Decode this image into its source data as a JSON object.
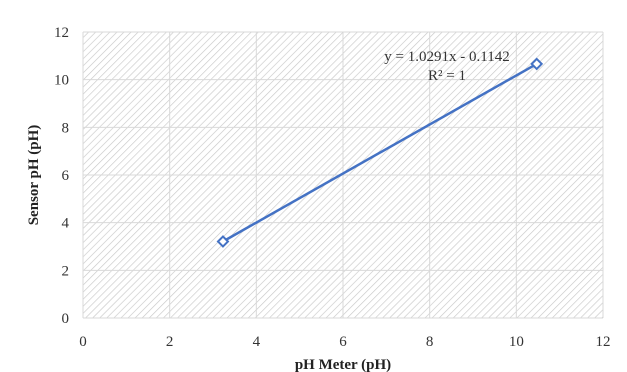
{
  "chart_data": {
    "type": "scatter",
    "title": "",
    "xlabel": "pH Meter (pH)",
    "ylabel": "Sensor pH (pH)",
    "xlim": [
      0,
      12
    ],
    "ylim": [
      0,
      12
    ],
    "x_ticks": [
      "0",
      "2",
      "4",
      "6",
      "8",
      "10",
      "12"
    ],
    "y_ticks": [
      "0",
      "2",
      "4",
      "6",
      "8",
      "10",
      "12"
    ],
    "grid": true,
    "plot_fill": "hatched",
    "series": [
      {
        "marker": "diamond-open",
        "color": "#4472C4",
        "points": [
          {
            "x": 3.23,
            "y": 3.21
          },
          {
            "x": 10.47,
            "y": 10.66
          }
        ]
      }
    ],
    "trendline": {
      "type": "linear",
      "color": "#4472C4",
      "slope": 1.0291,
      "intercept": -0.1142,
      "equation": "y = 1.0291x - 0.1142",
      "r_squared": "R² = 1"
    }
  }
}
